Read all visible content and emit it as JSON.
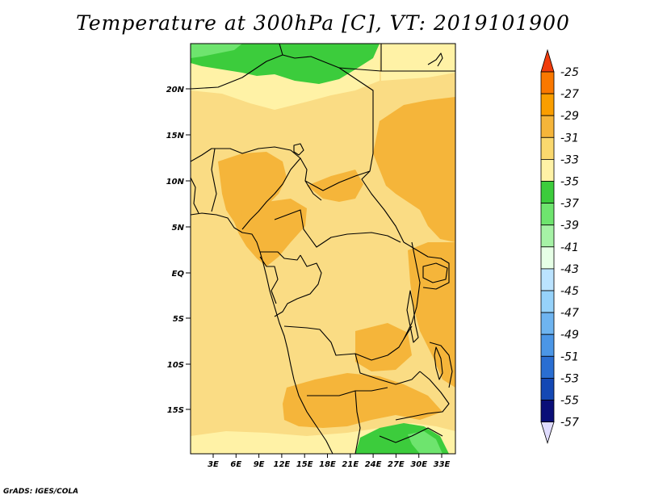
{
  "title": "Temperature at 300hPa [C], VT: 2019101900",
  "credit": "GrADS: IGES/COLA",
  "lat_labels": [
    "20N",
    "15N",
    "10N",
    "5N",
    "EQ",
    "5S",
    "10S",
    "15S"
  ],
  "lon_labels": [
    "3E",
    "6E",
    "9E",
    "12E",
    "15E",
    "18E",
    "21E",
    "24E",
    "27E",
    "30E",
    "33E"
  ],
  "colorbar": {
    "levels": [
      "-25",
      "-27",
      "-29",
      "-31",
      "-33",
      "-35",
      "-37",
      "-39",
      "-41",
      "-43",
      "-45",
      "-47",
      "-49",
      "-51",
      "-53",
      "-55",
      "-57"
    ],
    "colors": [
      "#f03c0c",
      "#fa7800",
      "#fa9e00",
      "#f5b53a",
      "#fad86e",
      "#fff2a6",
      "#3ccc3c",
      "#6ee46e",
      "#a6f2a6",
      "#e6ffe6",
      "#bbe3ff",
      "#96d2fa",
      "#6eb4f0",
      "#4b96e6",
      "#2a6ed2",
      "#1448b4",
      "#0a0f78",
      "#e0dcff"
    ]
  },
  "map": {
    "colors": {
      "base": "#fadc84",
      "pale": "#fff2a6",
      "warm": "#f5b53a",
      "green": "#3ccc3c",
      "lightgreen": "#6ee46e",
      "border": "#000000"
    }
  }
}
